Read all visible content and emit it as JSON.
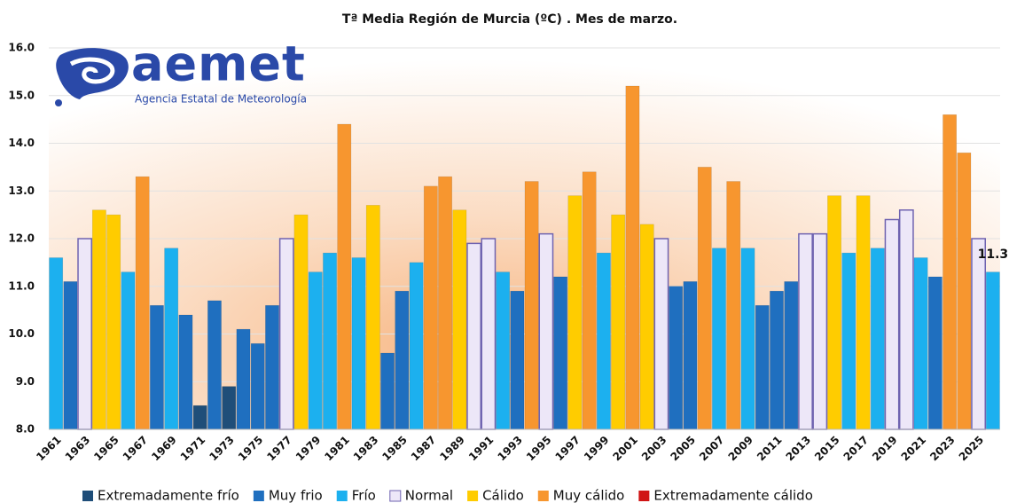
{
  "chart_data": {
    "type": "bar",
    "title": "Tª Media Región de Murcia (ºC) . Mes de marzo.",
    "logo": {
      "text": "aemet",
      "subtitle": "Agencia Estatal de Meteorología"
    },
    "categories": [
      "1961",
      null,
      "1963",
      null,
      "1965",
      null,
      "1967",
      null,
      "1969",
      null,
      "1971",
      null,
      "1973",
      null,
      "1975",
      null,
      "1977",
      null,
      "1979",
      null,
      "1981",
      null,
      "1983",
      null,
      "1985",
      null,
      "1987",
      null,
      "1989",
      null,
      "1991",
      null,
      "1993",
      null,
      "1995",
      null,
      "1997",
      null,
      "1999",
      null,
      "2001",
      null,
      "2003",
      null,
      "2005",
      null,
      "2007",
      null,
      "2009",
      null,
      "2011",
      null,
      "2013",
      null,
      "2015",
      null,
      "2017",
      null,
      "2019",
      null,
      "2021",
      null,
      "2023",
      null,
      "2025",
      null
    ],
    "series": [
      {
        "name": "Extremadamente frío",
        "color": "#1f4e79",
        "values": [
          null,
          null,
          null,
          null,
          null,
          null,
          null,
          null,
          null,
          null,
          8.5,
          null,
          8.9,
          null,
          null,
          null,
          null,
          null,
          null,
          null,
          null,
          null,
          null,
          null,
          null,
          null,
          null,
          null,
          null,
          null,
          null,
          null,
          null,
          null,
          null,
          null,
          null,
          null,
          null,
          null,
          null,
          null,
          null,
          null,
          null,
          null,
          null,
          null,
          null,
          null,
          null,
          null,
          null,
          null,
          null,
          null,
          null,
          null,
          null,
          null,
          null,
          null,
          null,
          null,
          null,
          null
        ]
      },
      {
        "name": "Muy frio",
        "color": "#1f6fbf",
        "values": [
          null,
          11.1,
          null,
          null,
          null,
          null,
          null,
          10.6,
          null,
          10.4,
          null,
          10.7,
          null,
          10.1,
          9.8,
          10.6,
          null,
          null,
          null,
          null,
          null,
          null,
          null,
          9.6,
          10.9,
          null,
          null,
          null,
          null,
          null,
          null,
          null,
          10.9,
          null,
          null,
          11.2,
          null,
          null,
          null,
          null,
          null,
          null,
          null,
          11.0,
          11.1,
          null,
          null,
          null,
          null,
          10.6,
          10.9,
          11.1,
          null,
          null,
          null,
          null,
          null,
          null,
          null,
          null,
          null,
          11.2,
          null,
          null,
          null,
          null
        ]
      },
      {
        "name": "Frío",
        "color": "#1cb0ef",
        "values": [
          11.6,
          null,
          null,
          null,
          null,
          11.3,
          null,
          null,
          11.8,
          null,
          null,
          null,
          null,
          null,
          null,
          null,
          null,
          null,
          11.3,
          11.7,
          null,
          11.6,
          null,
          null,
          null,
          11.5,
          null,
          null,
          null,
          null,
          null,
          11.3,
          null,
          null,
          null,
          null,
          null,
          null,
          11.7,
          null,
          null,
          null,
          null,
          null,
          null,
          null,
          11.8,
          null,
          11.8,
          null,
          null,
          null,
          null,
          null,
          null,
          11.7,
          null,
          11.8,
          null,
          null,
          11.6,
          null,
          null,
          null,
          null,
          11.3
        ]
      },
      {
        "name": "Normal",
        "color": "#ede7f8",
        "values": [
          null,
          null,
          12.0,
          null,
          null,
          null,
          null,
          null,
          null,
          null,
          null,
          null,
          null,
          null,
          null,
          null,
          12.0,
          null,
          null,
          null,
          null,
          null,
          null,
          null,
          null,
          null,
          null,
          null,
          null,
          11.9,
          12.0,
          null,
          null,
          null,
          12.1,
          null,
          null,
          null,
          null,
          null,
          null,
          null,
          12.0,
          null,
          null,
          null,
          null,
          null,
          null,
          null,
          null,
          null,
          12.1,
          12.1,
          null,
          null,
          null,
          null,
          12.4,
          12.6,
          null,
          null,
          null,
          null,
          12.0,
          null
        ]
      },
      {
        "name": "Cálido",
        "color": "#ffcc00",
        "values": [
          null,
          null,
          null,
          12.6,
          12.5,
          null,
          null,
          null,
          null,
          null,
          null,
          null,
          null,
          null,
          null,
          null,
          null,
          12.5,
          null,
          null,
          null,
          null,
          12.7,
          null,
          null,
          null,
          null,
          null,
          12.6,
          null,
          null,
          null,
          null,
          null,
          null,
          null,
          12.9,
          null,
          null,
          12.5,
          null,
          12.3,
          null,
          null,
          null,
          null,
          null,
          null,
          null,
          null,
          null,
          null,
          null,
          null,
          12.9,
          null,
          12.9,
          null,
          null,
          null,
          null,
          null,
          null,
          null,
          null,
          null
        ]
      },
      {
        "name": "Muy cálido",
        "color": "#f7962f",
        "values": [
          null,
          null,
          null,
          null,
          null,
          null,
          13.3,
          null,
          null,
          null,
          null,
          null,
          null,
          null,
          null,
          null,
          null,
          null,
          null,
          null,
          14.4,
          null,
          null,
          null,
          null,
          null,
          13.1,
          13.3,
          null,
          null,
          null,
          null,
          null,
          13.2,
          null,
          null,
          null,
          13.4,
          null,
          null,
          15.2,
          null,
          null,
          null,
          null,
          13.5,
          null,
          13.2,
          null,
          null,
          null,
          null,
          null,
          null,
          null,
          null,
          null,
          null,
          null,
          null,
          null,
          null,
          14.6,
          13.8,
          null,
          null
        ]
      },
      {
        "name": "Extremadamente cálido",
        "color": "#d01414",
        "values": [
          null,
          null,
          null,
          null,
          null,
          null,
          null,
          null,
          null,
          null,
          null,
          null,
          null,
          null,
          null,
          null,
          null,
          null,
          null,
          null,
          null,
          null,
          null,
          null,
          null,
          null,
          null,
          null,
          null,
          null,
          null,
          null,
          null,
          null,
          null,
          null,
          null,
          null,
          null,
          null,
          null,
          null,
          null,
          null,
          null,
          null,
          null,
          null,
          null,
          null,
          null,
          null,
          null,
          null,
          null,
          null,
          null,
          null,
          null,
          null,
          null,
          null,
          null,
          null,
          null,
          null
        ]
      }
    ],
    "ylim": [
      8,
      16
    ],
    "yticks": [
      {
        "value": 8,
        "label": "8.0"
      },
      {
        "value": 9,
        "label": "9.0"
      },
      {
        "value": 10,
        "label": "10.0"
      },
      {
        "value": 11,
        "label": "11.0"
      },
      {
        "value": 12,
        "label": "12.0"
      },
      {
        "value": 13,
        "label": "13.0"
      },
      {
        "value": 14,
        "label": "14.0"
      },
      {
        "value": 15,
        "label": "15.0"
      },
      {
        "value": 16,
        "label": "16.0"
      }
    ],
    "grid": true,
    "legend": "bottom"
  }
}
